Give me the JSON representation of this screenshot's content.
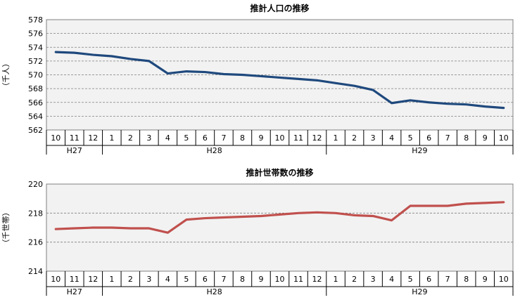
{
  "chart_data": [
    {
      "type": "line",
      "title": "推計人口の推移",
      "ylabel": "（千人）",
      "ylim": [
        562,
        578
      ],
      "yticks": [
        562,
        564,
        566,
        568,
        570,
        572,
        574,
        576,
        578
      ],
      "grid": true,
      "legend": "none",
      "categories": [
        "10",
        "11",
        "12",
        "1",
        "2",
        "3",
        "4",
        "5",
        "6",
        "7",
        "8",
        "9",
        "10",
        "11",
        "12",
        "1",
        "2",
        "3",
        "4",
        "5",
        "6",
        "7",
        "8",
        "9",
        "10"
      ],
      "year_groups": [
        {
          "label": "H27",
          "count": 3
        },
        {
          "label": "H28",
          "count": 12
        },
        {
          "label": "H29",
          "count": 10
        }
      ],
      "series": [
        {
          "color": "#1f497d",
          "values": [
            573.3,
            573.2,
            572.9,
            572.7,
            572.3,
            572.0,
            570.2,
            570.5,
            570.4,
            570.1,
            570.0,
            569.8,
            569.6,
            569.4,
            569.2,
            568.8,
            568.4,
            567.8,
            565.9,
            566.3,
            566.0,
            565.8,
            565.7,
            565.4,
            565.2
          ]
        }
      ]
    },
    {
      "type": "line",
      "title": "推計世帯数の推移",
      "ylabel": "（千世帯）",
      "ylim": [
        214,
        220
      ],
      "yticks": [
        214,
        216,
        218,
        220
      ],
      "grid": true,
      "legend": "none",
      "categories": [
        "10",
        "11",
        "12",
        "1",
        "2",
        "3",
        "4",
        "5",
        "6",
        "7",
        "8",
        "9",
        "10",
        "11",
        "12",
        "1",
        "2",
        "3",
        "4",
        "5",
        "6",
        "7",
        "8",
        "9",
        "10"
      ],
      "year_groups": [
        {
          "label": "H27",
          "count": 3
        },
        {
          "label": "H28",
          "count": 12
        },
        {
          "label": "H29",
          "count": 10
        }
      ],
      "series": [
        {
          "color": "#c0504d",
          "values": [
            216.9,
            216.95,
            217.0,
            217.0,
            216.95,
            216.95,
            216.65,
            217.55,
            217.65,
            217.7,
            217.75,
            217.8,
            217.9,
            218.0,
            218.05,
            218.0,
            217.85,
            217.8,
            217.5,
            218.5,
            218.5,
            218.5,
            218.65,
            218.7,
            218.75
          ]
        }
      ]
    }
  ]
}
